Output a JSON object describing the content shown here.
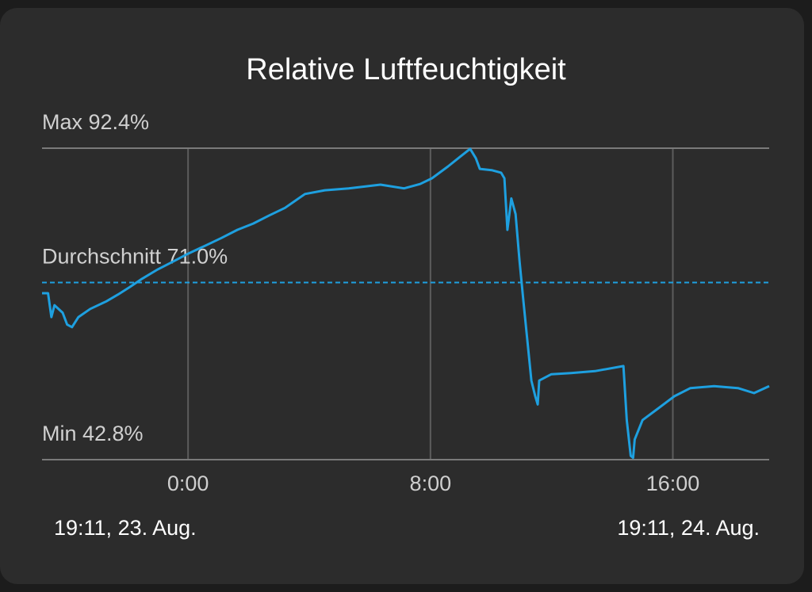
{
  "chart_data": {
    "type": "line",
    "title": "Relative Luftfeuchtigkeit",
    "x_start_label": "19:11,  23. Aug.",
    "x_end_label": "19:11,  24. Aug.",
    "xlim": [
      -4.82,
      19.18
    ],
    "xticks": [
      {
        "value": 0,
        "label": "0:00"
      },
      {
        "value": 8,
        "label": "8:00"
      },
      {
        "value": 16,
        "label": "16:00"
      }
    ],
    "ylim": [
      42.8,
      92.4
    ],
    "grid": true,
    "reference_lines": [
      {
        "label": "Max 92.4%",
        "value": 92.4,
        "style": "solid",
        "color": "#7a7a7a"
      },
      {
        "label": "Durchschnitt 71.0%",
        "value": 71.0,
        "style": "dashed",
        "color": "#1ea0e0"
      },
      {
        "label": "Min 42.8%",
        "value": 42.8,
        "style": "solid",
        "color": "#7a7a7a"
      }
    ],
    "x": [
      -4.82,
      -4.62,
      -4.51,
      -4.41,
      -4.14,
      -3.99,
      -3.83,
      -3.62,
      -3.23,
      -2.7,
      -2.31,
      -1.92,
      -1.52,
      -1.0,
      -0.47,
      0,
      0.58,
      1.1,
      1.63,
      2.15,
      2.68,
      3.2,
      3.86,
      4.51,
      5.3,
      6.35,
      7.13,
      7.66,
      8.05,
      8.58,
      8.97,
      9.31,
      9.5,
      9.63,
      10.02,
      10.33,
      10.44,
      10.54,
      10.67,
      10.81,
      10.94,
      11.07,
      11.2,
      11.33,
      11.46,
      11.54,
      11.59,
      11.99,
      12.64,
      13.43,
      14.37,
      14.48,
      14.61,
      14.69,
      14.74,
      15.0,
      15.53,
      16.05,
      16.58,
      17.36,
      18.15,
      18.68,
      19.18
    ],
    "series": [
      {
        "color": "#1ea0e0",
        "values": [
          69.3,
          69.3,
          65.5,
          67.4,
          66.2,
          64.3,
          63.9,
          65.5,
          66.8,
          68.0,
          69.1,
          70.3,
          71.6,
          73.1,
          74.4,
          75.6,
          76.9,
          78.1,
          79.4,
          80.4,
          81.7,
          82.9,
          85.1,
          85.7,
          86.0,
          86.6,
          86.0,
          86.7,
          87.6,
          89.5,
          91.0,
          92.3,
          90.8,
          89.1,
          88.9,
          88.5,
          87.6,
          79.4,
          84.4,
          81.9,
          74.4,
          68.0,
          61.7,
          55.4,
          52.9,
          51.6,
          55.4,
          56.4,
          56.6,
          56.9,
          57.7,
          49.1,
          43.4,
          43.1,
          46.0,
          49.1,
          51.0,
          52.9,
          54.2,
          54.5,
          54.2,
          53.4,
          54.5
        ]
      }
    ]
  }
}
